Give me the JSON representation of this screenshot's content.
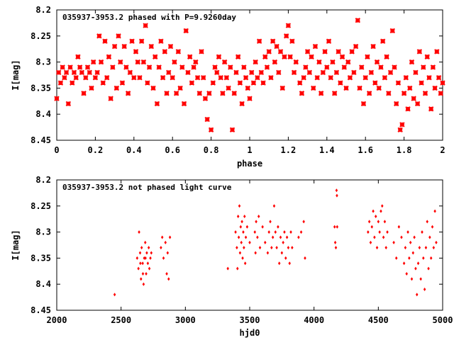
{
  "chart_data": [
    {
      "type": "scatter",
      "title": "035937-3953.2 phased with P=9.9260day",
      "xlabel": "phase",
      "ylabel": "I[mag]",
      "xlim": [
        0,
        2
      ],
      "ylim": [
        8.45,
        8.2
      ],
      "y_inverted": true,
      "xticks": [
        "0",
        "0.2",
        "0.4",
        "0.6",
        "0.8",
        "1",
        "1.2",
        "1.4",
        "1.6",
        "1.8",
        "2"
      ],
      "yticks": [
        "8.2",
        "8.25",
        "8.3",
        "8.35",
        "8.4",
        "8.45"
      ],
      "grid": false,
      "color": "#ff0000",
      "points": [
        [
          0.0,
          8.37
        ],
        [
          0.01,
          8.32
        ],
        [
          0.02,
          8.34
        ],
        [
          0.03,
          8.31
        ],
        [
          0.04,
          8.33
        ],
        [
          0.05,
          8.32
        ],
        [
          0.06,
          8.38
        ],
        [
          0.07,
          8.31
        ],
        [
          0.08,
          8.34
        ],
        [
          0.09,
          8.32
        ],
        [
          0.1,
          8.33
        ],
        [
          0.11,
          8.29
        ],
        [
          0.12,
          8.31
        ],
        [
          0.13,
          8.32
        ],
        [
          0.14,
          8.36
        ],
        [
          0.15,
          8.33
        ],
        [
          0.16,
          8.31
        ],
        [
          0.17,
          8.32
        ],
        [
          0.18,
          8.35
        ],
        [
          0.19,
          8.3
        ],
        [
          0.2,
          8.33
        ],
        [
          0.21,
          8.32
        ],
        [
          0.22,
          8.25
        ],
        [
          0.23,
          8.3
        ],
        [
          0.24,
          8.34
        ],
        [
          0.25,
          8.26
        ],
        [
          0.26,
          8.33
        ],
        [
          0.27,
          8.29
        ],
        [
          0.28,
          8.37
        ],
        [
          0.29,
          8.31
        ],
        [
          0.3,
          8.27
        ],
        [
          0.31,
          8.35
        ],
        [
          0.32,
          8.25
        ],
        [
          0.33,
          8.3
        ],
        [
          0.34,
          8.34
        ],
        [
          0.35,
          8.27
        ],
        [
          0.36,
          8.31
        ],
        [
          0.37,
          8.36
        ],
        [
          0.38,
          8.32
        ],
        [
          0.39,
          8.26
        ],
        [
          0.4,
          8.33
        ],
        [
          0.41,
          8.28
        ],
        [
          0.42,
          8.3
        ],
        [
          0.43,
          8.33
        ],
        [
          0.44,
          8.26
        ],
        [
          0.45,
          8.3
        ],
        [
          0.46,
          8.23
        ],
        [
          0.47,
          8.34
        ],
        [
          0.48,
          8.31
        ],
        [
          0.49,
          8.27
        ],
        [
          0.5,
          8.35
        ],
        [
          0.51,
          8.29
        ],
        [
          0.52,
          8.38
        ],
        [
          0.53,
          8.31
        ],
        [
          0.54,
          8.26
        ],
        [
          0.55,
          8.33
        ],
        [
          0.56,
          8.28
        ],
        [
          0.57,
          8.36
        ],
        [
          0.58,
          8.32
        ],
        [
          0.59,
          8.27
        ],
        [
          0.6,
          8.33
        ],
        [
          0.61,
          8.3
        ],
        [
          0.62,
          8.36
        ],
        [
          0.63,
          8.28
        ],
        [
          0.64,
          8.35
        ],
        [
          0.65,
          8.31
        ],
        [
          0.66,
          8.38
        ],
        [
          0.67,
          8.24
        ],
        [
          0.68,
          8.32
        ],
        [
          0.69,
          8.29
        ],
        [
          0.7,
          8.34
        ],
        [
          0.71,
          8.31
        ],
        [
          0.72,
          8.3
        ],
        [
          0.73,
          8.33
        ],
        [
          0.74,
          8.36
        ],
        [
          0.75,
          8.28
        ],
        [
          0.76,
          8.33
        ],
        [
          0.77,
          8.37
        ],
        [
          0.78,
          8.41
        ],
        [
          0.79,
          8.36
        ],
        [
          0.8,
          8.43
        ],
        [
          0.81,
          8.34
        ],
        [
          0.82,
          8.31
        ],
        [
          0.83,
          8.32
        ],
        [
          0.84,
          8.29
        ],
        [
          0.85,
          8.33
        ],
        [
          0.86,
          8.36
        ],
        [
          0.87,
          8.3
        ],
        [
          0.88,
          8.33
        ],
        [
          0.89,
          8.35
        ],
        [
          0.9,
          8.31
        ],
        [
          0.91,
          8.43
        ],
        [
          0.92,
          8.36
        ],
        [
          0.93,
          8.32
        ],
        [
          0.94,
          8.29
        ],
        [
          0.95,
          8.34
        ],
        [
          0.96,
          8.38
        ],
        [
          0.97,
          8.31
        ],
        [
          0.98,
          8.33
        ],
        [
          0.99,
          8.35
        ],
        [
          1.0,
          8.37
        ],
        [
          1.01,
          8.32
        ],
        [
          1.02,
          8.34
        ],
        [
          1.03,
          8.3
        ],
        [
          1.04,
          8.33
        ],
        [
          1.05,
          8.26
        ],
        [
          1.06,
          8.32
        ],
        [
          1.07,
          8.34
        ],
        [
          1.08,
          8.29
        ],
        [
          1.09,
          8.31
        ],
        [
          1.1,
          8.28
        ],
        [
          1.11,
          8.33
        ],
        [
          1.12,
          8.26
        ],
        [
          1.13,
          8.3
        ],
        [
          1.14,
          8.27
        ],
        [
          1.15,
          8.32
        ],
        [
          1.16,
          8.28
        ],
        [
          1.17,
          8.35
        ],
        [
          1.18,
          8.29
        ],
        [
          1.19,
          8.25
        ],
        [
          1.2,
          8.23
        ],
        [
          1.21,
          8.29
        ],
        [
          1.22,
          8.26
        ],
        [
          1.23,
          8.32
        ],
        [
          1.24,
          8.3
        ],
        [
          1.26,
          8.34
        ],
        [
          1.27,
          8.36
        ],
        [
          1.28,
          8.33
        ],
        [
          1.29,
          8.31
        ],
        [
          1.3,
          8.28
        ],
        [
          1.31,
          8.32
        ],
        [
          1.32,
          8.29
        ],
        [
          1.33,
          8.35
        ],
        [
          1.34,
          8.27
        ],
        [
          1.35,
          8.33
        ],
        [
          1.36,
          8.3
        ],
        [
          1.37,
          8.36
        ],
        [
          1.38,
          8.32
        ],
        [
          1.39,
          8.28
        ],
        [
          1.4,
          8.31
        ],
        [
          1.41,
          8.26
        ],
        [
          1.42,
          8.33
        ],
        [
          1.43,
          8.3
        ],
        [
          1.44,
          8.36
        ],
        [
          1.45,
          8.32
        ],
        [
          1.46,
          8.28
        ],
        [
          1.47,
          8.34
        ],
        [
          1.48,
          8.29
        ],
        [
          1.49,
          8.31
        ],
        [
          1.5,
          8.35
        ],
        [
          1.51,
          8.3
        ],
        [
          1.52,
          8.33
        ],
        [
          1.53,
          8.28
        ],
        [
          1.54,
          8.32
        ],
        [
          1.55,
          8.27
        ],
        [
          1.56,
          8.22
        ],
        [
          1.57,
          8.35
        ],
        [
          1.58,
          8.31
        ],
        [
          1.59,
          8.38
        ],
        [
          1.6,
          8.33
        ],
        [
          1.61,
          8.29
        ],
        [
          1.62,
          8.36
        ],
        [
          1.63,
          8.32
        ],
        [
          1.64,
          8.27
        ],
        [
          1.65,
          8.34
        ],
        [
          1.66,
          8.3
        ],
        [
          1.67,
          8.35
        ],
        [
          1.68,
          8.31
        ],
        [
          1.69,
          8.26
        ],
        [
          1.7,
          8.33
        ],
        [
          1.71,
          8.29
        ],
        [
          1.72,
          8.36
        ],
        [
          1.73,
          8.32
        ],
        [
          1.74,
          8.24
        ],
        [
          1.75,
          8.31
        ],
        [
          1.76,
          8.38
        ],
        [
          1.77,
          8.34
        ],
        [
          1.78,
          8.43
        ],
        [
          1.79,
          8.42
        ],
        [
          1.8,
          8.36
        ],
        [
          1.81,
          8.33
        ],
        [
          1.82,
          8.39
        ],
        [
          1.83,
          8.35
        ],
        [
          1.84,
          8.3
        ],
        [
          1.85,
          8.37
        ],
        [
          1.86,
          8.32
        ],
        [
          1.87,
          8.38
        ],
        [
          1.88,
          8.28
        ],
        [
          1.89,
          8.34
        ],
        [
          1.9,
          8.31
        ],
        [
          1.91,
          8.36
        ],
        [
          1.92,
          8.29
        ],
        [
          1.93,
          8.33
        ],
        [
          1.94,
          8.39
        ],
        [
          1.95,
          8.31
        ],
        [
          1.96,
          8.35
        ],
        [
          1.97,
          8.28
        ],
        [
          1.98,
          8.33
        ],
        [
          1.99,
          8.36
        ],
        [
          2.0,
          8.34
        ]
      ]
    },
    {
      "type": "scatter",
      "title": "035937-3953.2 not phased light curve",
      "xlabel": "hjd0",
      "ylabel": "I[mag]",
      "xlim": [
        2000,
        5000
      ],
      "ylim": [
        8.45,
        8.2
      ],
      "y_inverted": true,
      "xticks": [
        "2000",
        "2500",
        "3000",
        "3500",
        "4000",
        "4500",
        "5000"
      ],
      "yticks": [
        "8.2",
        "8.25",
        "8.3",
        "8.35",
        "8.4",
        "8.45"
      ],
      "grid": false,
      "color": "#ff0000",
      "points": [
        [
          2450,
          8.42
        ],
        [
          2625,
          8.35
        ],
        [
          2635,
          8.37
        ],
        [
          2640,
          8.3
        ],
        [
          2648,
          8.34
        ],
        [
          2655,
          8.39
        ],
        [
          2660,
          8.33
        ],
        [
          2668,
          8.36
        ],
        [
          2675,
          8.4
        ],
        [
          2680,
          8.35
        ],
        [
          2688,
          8.32
        ],
        [
          2695,
          8.38
        ],
        [
          2700,
          8.34
        ],
        [
          2708,
          8.36
        ],
        [
          2715,
          8.33
        ],
        [
          2720,
          8.37
        ],
        [
          2728,
          8.35
        ],
        [
          2735,
          8.34
        ],
        [
          2650,
          8.36
        ],
        [
          2670,
          8.38
        ],
        [
          2690,
          8.35
        ],
        [
          2810,
          8.33
        ],
        [
          2820,
          8.31
        ],
        [
          2830,
          8.35
        ],
        [
          2845,
          8.32
        ],
        [
          2855,
          8.38
        ],
        [
          2862,
          8.34
        ],
        [
          2870,
          8.39
        ],
        [
          2880,
          8.31
        ],
        [
          3330,
          8.37
        ],
        [
          3390,
          8.3
        ],
        [
          3400,
          8.33
        ],
        [
          3405,
          8.37
        ],
        [
          3410,
          8.27
        ],
        [
          3415,
          8.31
        ],
        [
          3420,
          8.25
        ],
        [
          3425,
          8.34
        ],
        [
          3430,
          8.29
        ],
        [
          3435,
          8.32
        ],
        [
          3440,
          8.28
        ],
        [
          3445,
          8.35
        ],
        [
          3450,
          8.3
        ],
        [
          3455,
          8.33
        ],
        [
          3460,
          8.27
        ],
        [
          3465,
          8.36
        ],
        [
          3470,
          8.31
        ],
        [
          3480,
          8.29
        ],
        [
          3500,
          8.32
        ],
        [
          3540,
          8.3
        ],
        [
          3545,
          8.34
        ],
        [
          3550,
          8.28
        ],
        [
          3560,
          8.31
        ],
        [
          3570,
          8.27
        ],
        [
          3580,
          8.33
        ],
        [
          3600,
          8.29
        ],
        [
          3620,
          8.32
        ],
        [
          3640,
          8.34
        ],
        [
          3650,
          8.3
        ],
        [
          3660,
          8.28
        ],
        [
          3670,
          8.33
        ],
        [
          3680,
          8.31
        ],
        [
          3690,
          8.25
        ],
        [
          3700,
          8.3
        ],
        [
          3710,
          8.33
        ],
        [
          3720,
          8.29
        ],
        [
          3730,
          8.36
        ],
        [
          3740,
          8.31
        ],
        [
          3750,
          8.34
        ],
        [
          3760,
          8.32
        ],
        [
          3770,
          8.3
        ],
        [
          3780,
          8.35
        ],
        [
          3790,
          8.31
        ],
        [
          3800,
          8.33
        ],
        [
          3810,
          8.36
        ],
        [
          3820,
          8.3
        ],
        [
          3830,
          8.33
        ],
        [
          3880,
          8.31
        ],
        [
          3900,
          8.3
        ],
        [
          3920,
          8.28
        ],
        [
          3930,
          8.35
        ],
        [
          4160,
          8.29
        ],
        [
          4165,
          8.32
        ],
        [
          4170,
          8.33
        ],
        [
          4175,
          8.22
        ],
        [
          4178,
          8.23
        ],
        [
          4180,
          8.29
        ],
        [
          4420,
          8.3
        ],
        [
          4430,
          8.28
        ],
        [
          4440,
          8.32
        ],
        [
          4450,
          8.29
        ],
        [
          4460,
          8.26
        ],
        [
          4470,
          8.31
        ],
        [
          4480,
          8.27
        ],
        [
          4490,
          8.33
        ],
        [
          4500,
          8.28
        ],
        [
          4510,
          8.3
        ],
        [
          4520,
          8.26
        ],
        [
          4530,
          8.25
        ],
        [
          4540,
          8.31
        ],
        [
          4550,
          8.28
        ],
        [
          4560,
          8.33
        ],
        [
          4570,
          8.3
        ],
        [
          4620,
          8.32
        ],
        [
          4640,
          8.35
        ],
        [
          4660,
          8.29
        ],
        [
          4680,
          8.31
        ],
        [
          4700,
          8.36
        ],
        [
          4710,
          8.33
        ],
        [
          4720,
          8.38
        ],
        [
          4730,
          8.3
        ],
        [
          4740,
          8.35
        ],
        [
          4750,
          8.32
        ],
        [
          4760,
          8.39
        ],
        [
          4770,
          8.34
        ],
        [
          4780,
          8.31
        ],
        [
          4790,
          8.37
        ],
        [
          4800,
          8.42
        ],
        [
          4810,
          8.36
        ],
        [
          4820,
          8.33
        ],
        [
          4830,
          8.39
        ],
        [
          4840,
          8.3
        ],
        [
          4850,
          8.35
        ],
        [
          4860,
          8.41
        ],
        [
          4870,
          8.33
        ],
        [
          4880,
          8.28
        ],
        [
          4890,
          8.37
        ],
        [
          4900,
          8.31
        ],
        [
          4910,
          8.35
        ],
        [
          4920,
          8.29
        ],
        [
          4930,
          8.33
        ],
        [
          4940,
          8.26
        ],
        [
          4950,
          8.32
        ]
      ]
    }
  ]
}
